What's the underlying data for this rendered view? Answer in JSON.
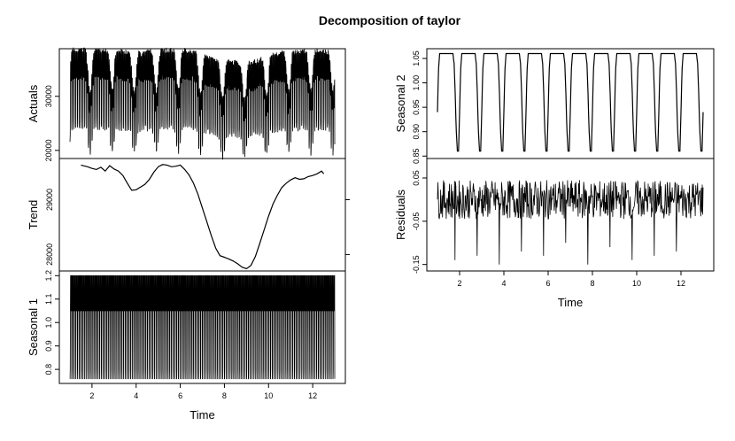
{
  "title": "Decomposition of taylor",
  "chart_data": [
    {
      "type": "line",
      "ylabel": "Actuals",
      "x_range": [
        1,
        13
      ],
      "ylim": [
        18500,
        38800
      ],
      "y_ticks": [
        "20000",
        "30000"
      ],
      "x_ticks": [],
      "series": [
        {
          "pattern": "sum of trend, seasonal 1 and seasonal 2"
        }
      ]
    },
    {
      "type": "line",
      "ylabel": "Trend",
      "x_range": [
        1,
        13
      ],
      "ylim": [
        27700,
        29750
      ],
      "y_ticks": [
        "28000",
        "29000"
      ],
      "x_ticks": [],
      "series": [
        {
          "x": [
            1.5,
            1.8,
            2.0,
            2.2,
            2.4,
            2.6,
            2.8,
            3.0,
            3.2,
            3.4,
            3.6,
            3.8,
            4.0,
            4.2,
            4.4,
            4.6,
            4.8,
            5.0,
            5.2,
            5.4,
            5.6,
            5.8,
            6.0,
            6.2,
            6.4,
            6.6,
            6.8,
            7.0,
            7.2,
            7.4,
            7.6,
            7.8,
            8.0,
            8.2,
            8.4,
            8.6,
            8.8,
            9.0,
            9.2,
            9.4,
            9.6,
            9.8,
            10.0,
            10.2,
            10.4,
            10.6,
            10.8,
            11.0,
            11.2,
            11.4,
            11.6,
            11.8,
            12.0,
            12.2,
            12.4,
            12.5
          ],
          "values": [
            29630,
            29600,
            29570,
            29550,
            29590,
            29520,
            29620,
            29560,
            29520,
            29440,
            29300,
            29170,
            29180,
            29230,
            29280,
            29370,
            29500,
            29600,
            29640,
            29630,
            29600,
            29610,
            29630,
            29550,
            29450,
            29300,
            29100,
            28850,
            28600,
            28350,
            28120,
            27980,
            27950,
            27920,
            27880,
            27830,
            27770,
            27740,
            27800,
            27960,
            28200,
            28450,
            28700,
            28920,
            29080,
            29220,
            29300,
            29360,
            29400,
            29370,
            29380,
            29420,
            29440,
            29470,
            29520,
            29470
          ]
        }
      ]
    },
    {
      "type": "line",
      "ylabel": "Seasonal 1",
      "x_range": [
        1,
        13
      ],
      "ylim": [
        0.74,
        1.22
      ],
      "y_ticks": [
        "0.8",
        "0.9",
        "1.0",
        "1.1",
        "1.2"
      ],
      "x_ticks": [
        "2",
        "4",
        "6",
        "8",
        "10",
        "12"
      ],
      "xlabel": "Time",
      "series": [
        {
          "pattern": "daily cycle, 12 cycles per unit",
          "cycle_shape": [
            0.76,
            0.76,
            0.8,
            1.05,
            1.2,
            1.2,
            1.2,
            1.05,
            1.05,
            1.05,
            1.2,
            1.2
          ]
        }
      ]
    },
    {
      "type": "line",
      "ylabel": "Seasonal 2",
      "x_range": [
        1,
        13
      ],
      "ylim": [
        0.845,
        1.07
      ],
      "y_ticks": [
        "0.85",
        "0.90",
        "0.95",
        "1.00",
        "1.05"
      ],
      "x_ticks": [],
      "series": [
        {
          "pattern": "weekly cycle, 1 cycle per unit",
          "cycle_x": [
            0.0,
            0.05,
            0.1,
            0.7,
            0.75,
            0.8,
            0.85,
            0.9,
            0.95,
            1.0
          ],
          "cycle_y": [
            0.94,
            1.03,
            1.06,
            1.06,
            1.04,
            0.98,
            0.9,
            0.86,
            0.86,
            0.94
          ]
        }
      ]
    },
    {
      "type": "line",
      "ylabel": "Residuals",
      "x_range": [
        1,
        13
      ],
      "ylim": [
        -0.165,
        0.095
      ],
      "y_ticks": [
        "-0.15",
        "-0.05",
        "0.05"
      ],
      "x_ticks": [
        "2",
        "4",
        "6",
        "8",
        "10",
        "12"
      ],
      "xlabel": "Time",
      "series": [
        {
          "pattern": "noise around 0 with negative spikes near each weekly low",
          "spikes_x": [
            1.8,
            2.8,
            3.8,
            4.8,
            5.8,
            6.8,
            7.8,
            8.8,
            9.8,
            10.8,
            11.8
          ],
          "spikes_y": [
            -0.14,
            -0.13,
            -0.15,
            -0.12,
            -0.13,
            -0.1,
            -0.15,
            -0.11,
            -0.14,
            -0.13,
            -0.12
          ]
        }
      ]
    }
  ]
}
